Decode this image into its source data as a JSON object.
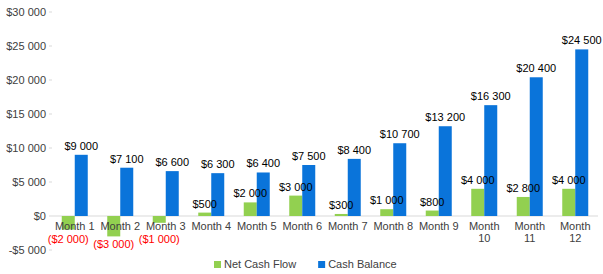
{
  "chart_data": {
    "type": "bar",
    "categories": [
      "Month 1",
      "Month 2",
      "Month 3",
      "Month 4",
      "Month 5",
      "Month 6",
      "Month 7",
      "Month 8",
      "Month 9",
      "Month 10",
      "Month 11",
      "Month 12"
    ],
    "series": [
      {
        "name": "Net Cash Flow",
        "color": "#92d050",
        "values": [
          -2000,
          -3000,
          -1000,
          500,
          2000,
          3000,
          300,
          1000,
          800,
          4000,
          2800,
          4000
        ],
        "value_labels": [
          "($2 000)",
          "($3 000)",
          "($1 000)",
          "$500",
          "$2 000",
          "$3 000",
          "$300",
          "$1 000",
          "$800",
          "$4 000",
          "$2 800",
          "$4 000"
        ]
      },
      {
        "name": "Cash Balance",
        "color": "#0a74da",
        "values": [
          9000,
          7100,
          6600,
          6300,
          6400,
          7500,
          8400,
          10700,
          13200,
          16300,
          20400,
          24500
        ],
        "value_labels": [
          "$9 000",
          "$7 100",
          "$6 600",
          "$6 300",
          "$6 400",
          "$7 500",
          "$8 400",
          "$10 700",
          "$13 200",
          "$16 300",
          "$20 400",
          "$24 500"
        ]
      }
    ],
    "ylim": [
      -5000,
      30000
    ],
    "yticks": [
      {
        "value": -5000,
        "label": "-$5 000"
      },
      {
        "value": 0,
        "label": "$0"
      },
      {
        "value": 5000,
        "label": "$5 000"
      },
      {
        "value": 10000,
        "label": "$10 000"
      },
      {
        "value": 15000,
        "label": "$15 000"
      },
      {
        "value": 20000,
        "label": "$20 000"
      },
      {
        "value": 25000,
        "label": "$25 000"
      },
      {
        "value": 30000,
        "label": "$30 000"
      }
    ],
    "grid": false,
    "legend": "bottom",
    "data_labels": true
  }
}
